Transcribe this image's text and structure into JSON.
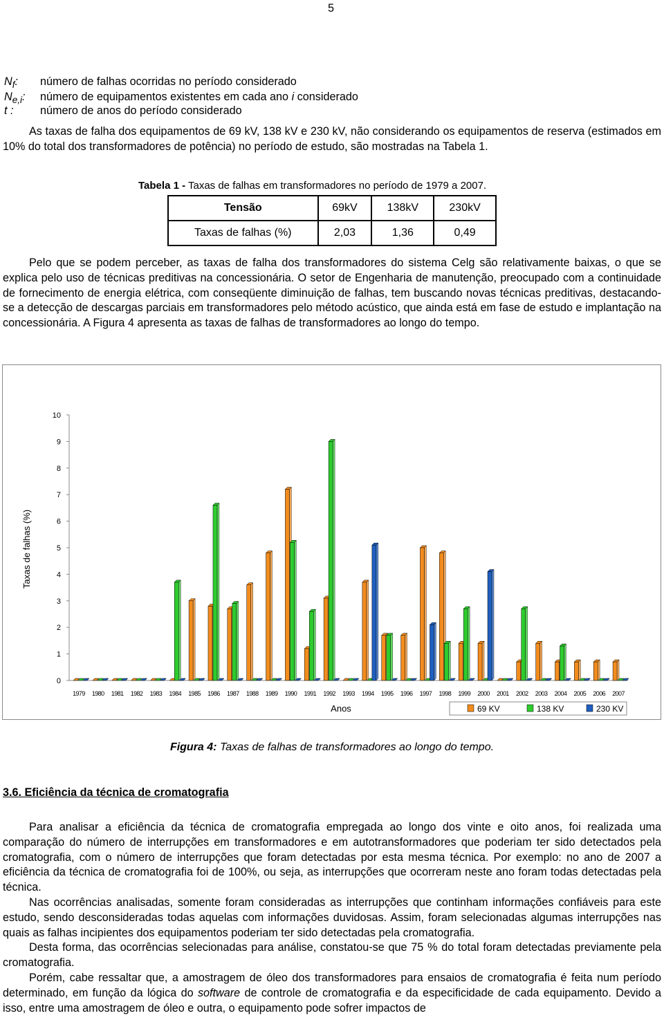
{
  "page_number": "5",
  "definitions": [
    {
      "symbol": "N",
      "sub": "f",
      "sep": ":",
      "text": [
        "número de falhas ocorridas no período considerado"
      ]
    },
    {
      "symbol": "N",
      "sub": "e,i",
      "sep": ":",
      "text": [
        "número de equipamentos existentes em cada ano ",
        "i",
        " considerado"
      ]
    },
    {
      "symbol": "t",
      "sub": null,
      "sep": " :",
      "text": [
        "número de anos do período considerado"
      ]
    }
  ],
  "paragraph_1": "As taxas de falha dos equipamentos de 69 kV, 138 kV e 230 kV, não considerando os equipamentos de reserva (estimados em 10% do total dos transformadores de potência) no período de estudo, são mostradas na Tabela 1.",
  "table": {
    "caption": {
      "label": "Tabela 1 -",
      "text": " Taxas de falhas em transformadores no período de 1979 a 2007."
    },
    "header": [
      "Tensão",
      "69kV",
      "138kV",
      "230kV"
    ],
    "rows": [
      [
        "Taxas de falhas (%)",
        "2,03",
        "1,36",
        "0,49"
      ]
    ]
  },
  "paragraph_2": "Pelo que se podem perceber, as taxas de falha dos transformadores do sistema Celg são relativamente baixas, o que se explica pelo uso de técnicas preditivas na concessionária. O setor de Engenharia de manutenção, preocupado com a continuidade de fornecimento de energia elétrica, com conseqüente diminuição de falhas, tem buscando novas técnicas preditivas, destacando-se a detecção de descargas parciais em transformadores pelo método acústico, que ainda está em fase de estudo e implantação na concessionária. A Figura 4 apresenta as taxas de falhas de transformadores ao longo do tempo.",
  "chart_data": {
    "type": "bar",
    "x_label": "Anos",
    "y_label": "Taxas de falhas (%)",
    "categories": [
      "1979",
      "1980",
      "1981",
      "1982",
      "1983",
      "1984",
      "1985",
      "1986",
      "1987",
      "1988",
      "1989",
      "1990",
      "1991",
      "1992",
      "1993",
      "1994",
      "1995",
      "1996",
      "1997",
      "1998",
      "1999",
      "2000",
      "2001",
      "2002",
      "2003",
      "2004",
      "2005",
      "2006",
      "2007"
    ],
    "series": [
      {
        "name": "69 KV",
        "color": "#f28c1e",
        "values": [
          0,
          0,
          0,
          0,
          0,
          0,
          3.0,
          2.8,
          2.7,
          3.6,
          4.8,
          7.2,
          1.2,
          3.1,
          0,
          3.7,
          1.7,
          1.7,
          5.0,
          4.8,
          1.4,
          1.4,
          0,
          0.7,
          1.4,
          0.7,
          0.7,
          0.7,
          0.7
        ]
      },
      {
        "name": "138 KV",
        "color": "#2ecc2e",
        "values": [
          0,
          0,
          0,
          0,
          0,
          3.7,
          0,
          6.6,
          2.9,
          0,
          0,
          5.2,
          2.6,
          9.0,
          0,
          0,
          1.7,
          0,
          0,
          1.4,
          2.7,
          0,
          0,
          2.7,
          0,
          1.3,
          0,
          0,
          0
        ]
      },
      {
        "name": "230 KV",
        "color": "#1f5fbf",
        "values": [
          0,
          0,
          0,
          0,
          0,
          0,
          0,
          0,
          0,
          0,
          0,
          0,
          0,
          0,
          0,
          5.1,
          0,
          0,
          2.1,
          0,
          0,
          4.1,
          0,
          0,
          0,
          0,
          0,
          0,
          0
        ]
      }
    ],
    "ylim": [
      0,
      10
    ],
    "yticks": [
      0,
      1,
      2,
      3,
      4,
      5,
      6,
      7,
      8,
      9,
      10
    ],
    "grid": false,
    "legend": "bottom-right"
  },
  "figure_caption": {
    "label": "Figura 4:",
    "text": " Taxas de falhas de transformadores ao longo do tempo."
  },
  "section_heading": "3.6. Eficiência da técnica de cromatografia",
  "paragraph_3": "Para analisar a eficiência da técnica de cromatografia empregada ao longo dos vinte e oito anos, foi realizada uma comparação do número de interrupções em transformadores e em autotransformadores que poderiam ter sido detectados pela cromatografia, com o número de interrupções que foram detectadas por esta mesma técnica. Por exemplo: no ano de 2007 a eficiência da técnica de cromatografia foi de 100%, ou seja, as interrupções que ocorreram neste ano foram todas detectadas pela técnica.",
  "paragraph_4": "Nas ocorrências analisadas, somente foram consideradas as interrupções que continham informações confiáveis para este estudo, sendo desconsideradas todas aquelas com informações duvidosas. Assim, foram selecionadas algumas interrupções nas quais as falhas incipientes dos equipamentos poderiam ter sido detectadas pela cromatografia.",
  "paragraph_5": "Desta forma, das ocorrências selecionadas para análise, constatou-se que 75 % do total foram detectadas previamente pela cromatografia.",
  "paragraph_6": [
    "Porém, cabe ressaltar que, a amostragem de óleo dos transformadores para ensaios de cromatografia é feita num período determinado, em função da lógica do ",
    "software",
    " de controle de cromatografia e da especificidade de cada equipamento. Devido a isso, entre uma amostragem de óleo e outra, o equipamento pode sofrer impactos de"
  ]
}
